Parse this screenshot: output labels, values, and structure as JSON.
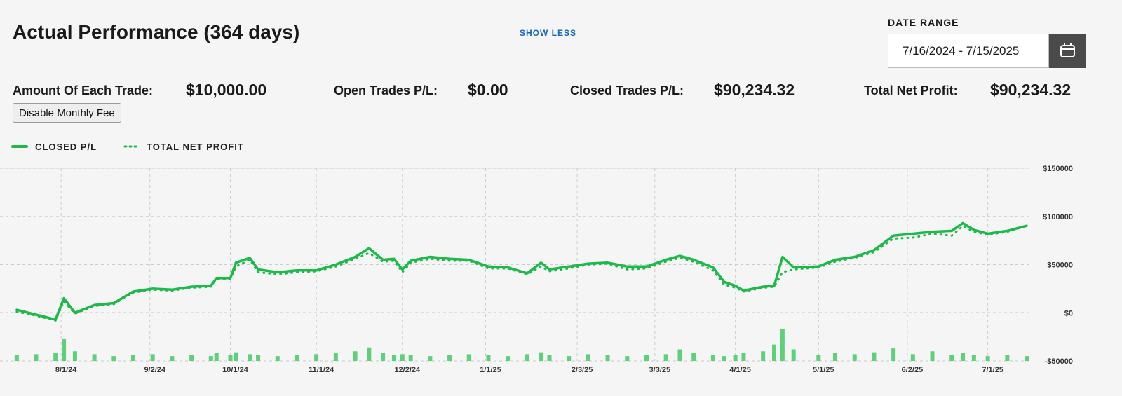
{
  "header": {
    "title": "Actual Performance (364 days)",
    "toggle": "SHOW LESS",
    "date_range_label": "DATE RANGE",
    "date_range": "7/16/2024 - 7/15/2025"
  },
  "stats": [
    {
      "label": "Amount Of Each Trade:",
      "value": "$10,000.00"
    },
    {
      "label": "Open Trades P/L:",
      "value": "$0.00"
    },
    {
      "label": "Closed Trades P/L:",
      "value": "$90,234.32"
    },
    {
      "label": "Total Net Profit:",
      "value": "$90,234.32"
    }
  ],
  "button": "Disable Monthly Fee",
  "chart_data": {
    "type": "line",
    "x": [
      "7/16/24",
      "7/23/24",
      "7/30/24",
      "8/2/24",
      "8/6/24",
      "8/13/24",
      "8/20/24",
      "8/27/24",
      "9/3/24",
      "9/10/24",
      "9/17/24",
      "9/24/24",
      "9/26/24",
      "10/1/24",
      "10/3/24",
      "10/8/24",
      "10/11/24",
      "10/18/24",
      "10/25/24",
      "11/1/24",
      "11/8/24",
      "11/15/24",
      "11/20/24",
      "11/25/24",
      "11/29/24",
      "12/2/24",
      "12/5/24",
      "12/12/24",
      "12/19/24",
      "12/26/24",
      "1/2/25",
      "1/9/25",
      "1/16/25",
      "1/21/25",
      "1/24/25",
      "1/31/25",
      "2/7/25",
      "2/14/25",
      "2/21/25",
      "2/28/25",
      "3/7/25",
      "3/12/25",
      "3/17/25",
      "3/24/25",
      "3/28/25",
      "4/1/25",
      "4/4/25",
      "4/11/25",
      "4/15/25",
      "4/18/25",
      "4/22/25",
      "5/1/25",
      "5/7/25",
      "5/14/25",
      "5/21/25",
      "5/28/25",
      "6/4/25",
      "6/11/25",
      "6/18/25",
      "6/22/25",
      "6/26/25",
      "7/1/25",
      "7/8/25",
      "7/15/25"
    ],
    "series": [
      {
        "name": "CLOSED P/L",
        "color": "#1db94a",
        "line_style": "solid",
        "values": [
          3000,
          -2000,
          -7000,
          15000,
          0,
          8000,
          10000,
          22000,
          25000,
          24000,
          27000,
          28000,
          36000,
          36000,
          52000,
          57000,
          45000,
          42000,
          44000,
          44000,
          50000,
          58000,
          67000,
          55000,
          56000,
          45000,
          54000,
          58000,
          56000,
          55000,
          48000,
          47000,
          41000,
          52000,
          45000,
          48000,
          51000,
          52000,
          48000,
          48000,
          55000,
          59000,
          55000,
          47000,
          32000,
          28000,
          23000,
          27000,
          28000,
          58000,
          47000,
          48000,
          55000,
          58000,
          65000,
          80000,
          82000,
          84000,
          85000,
          93000,
          86000,
          82000,
          85000,
          90234.32
        ]
      },
      {
        "name": "TOTAL NET PROFIT",
        "color": "#1db94a",
        "line_style": "dotted",
        "values": [
          1000,
          -3000,
          -8000,
          12000,
          -1000,
          7000,
          9000,
          21000,
          24000,
          23000,
          26000,
          27000,
          35000,
          35000,
          48000,
          55000,
          42000,
          40000,
          42000,
          43000,
          48000,
          56000,
          62000,
          53000,
          54000,
          42000,
          52000,
          56000,
          54000,
          54000,
          46000,
          46000,
          40000,
          48000,
          43000,
          46000,
          50000,
          51000,
          45000,
          46000,
          53000,
          57000,
          53000,
          44000,
          29000,
          26000,
          22000,
          26000,
          27000,
          42000,
          45000,
          47000,
          53000,
          57000,
          63000,
          77000,
          78000,
          82000,
          80000,
          90000,
          84000,
          81000,
          84000,
          90234.32
        ]
      }
    ],
    "bars": {
      "color": "#5dd07a",
      "values": [
        -44000,
        -43000,
        -42000,
        -27000,
        -40000,
        -43000,
        -45000,
        -44000,
        -43000,
        -45000,
        -44000,
        -45000,
        -42000,
        -44000,
        -41000,
        -43000,
        -44000,
        -45000,
        -44000,
        -43000,
        -42000,
        -40000,
        -36000,
        -42000,
        -44000,
        -43000,
        -44000,
        -45000,
        -44000,
        -43000,
        -44000,
        -45000,
        -43000,
        -41000,
        -44000,
        -45000,
        -43000,
        -44000,
        -45000,
        -44000,
        -43000,
        -38000,
        -42000,
        -44000,
        -45000,
        -44000,
        -42000,
        -40000,
        -33000,
        -17000,
        -38000,
        -44000,
        -42000,
        -43000,
        -41000,
        -37000,
        -43000,
        -40000,
        -44000,
        -42000,
        -44000,
        -45000,
        -44000,
        -45000
      ]
    },
    "xlim": [
      "7/12/24",
      "7/16/25"
    ],
    "xticks": [
      "8/1/24",
      "9/2/24",
      "10/1/24",
      "11/1/24",
      "12/2/24",
      "1/1/25",
      "2/3/25",
      "3/3/25",
      "4/1/25",
      "5/1/25",
      "6/2/25",
      "7/1/25"
    ],
    "ylim": [
      -50000,
      150000
    ],
    "yticks": [
      {
        "value": 150000,
        "label": "$150000"
      },
      {
        "value": 100000,
        "label": "$100000"
      },
      {
        "value": 50000,
        "label": "$50000"
      },
      {
        "value": 0,
        "label": "$0"
      },
      {
        "value": -50000,
        "label": "-$50000"
      }
    ],
    "grid": true,
    "legend": "top-left"
  }
}
